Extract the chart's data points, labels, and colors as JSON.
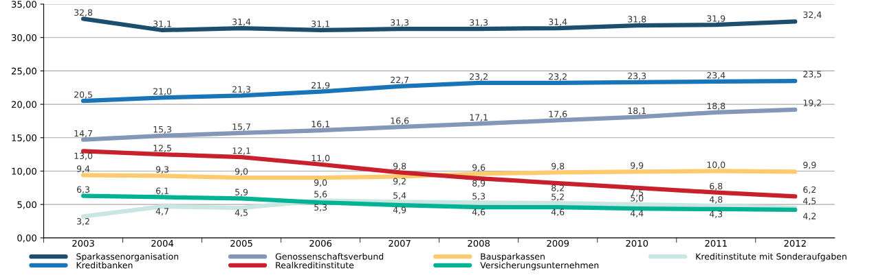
{
  "chart_data": {
    "type": "line",
    "categories": [
      "2003",
      "2004",
      "2005",
      "2006",
      "2007",
      "2008",
      "2009",
      "2010",
      "2011",
      "2012"
    ],
    "series": [
      {
        "name": "Sparkassenorganisation",
        "color": "#1d4e6e",
        "values": [
          32.8,
          31.1,
          31.4,
          31.1,
          31.3,
          31.3,
          31.4,
          31.8,
          31.9,
          32.4
        ],
        "value_labels": [
          "32,8",
          "31,1",
          "31,4",
          "31,1",
          "31,3",
          "31,3",
          "31,4",
          "31,8",
          "31,9",
          "32,4"
        ]
      },
      {
        "name": "Kreditbanken",
        "color": "#1a75b8",
        "values": [
          20.5,
          21.0,
          21.3,
          21.9,
          22.7,
          23.2,
          23.2,
          23.3,
          23.4,
          23.5
        ],
        "value_labels": [
          "20,5",
          "21,0",
          "21,3",
          "21,9",
          "22,7",
          "23,2",
          "23,2",
          "23,3",
          "23,4",
          "23,5"
        ]
      },
      {
        "name": "Genossenschaftsverbund",
        "color": "#8497b8",
        "values": [
          14.7,
          15.3,
          15.7,
          16.1,
          16.6,
          17.1,
          17.6,
          18.1,
          18.8,
          19.2
        ],
        "value_labels": [
          "14,7",
          "15,3",
          "15,7",
          "16,1",
          "16,6",
          "17,1",
          "17,6",
          "18,1",
          "18,8",
          "19,2"
        ]
      },
      {
        "name": "Realkreditinstitute",
        "color": "#c8202c",
        "values": [
          13.0,
          12.5,
          12.1,
          11.0,
          9.8,
          8.9,
          8.2,
          7.5,
          6.8,
          6.2
        ],
        "value_labels": [
          "13,0",
          "12,5",
          "12,1",
          "11,0",
          "9,8",
          "8,9",
          "8,2",
          "7,5",
          "6,8",
          "6,2"
        ]
      },
      {
        "name": "Bausparkassen",
        "color": "#fdcb6e",
        "values": [
          9.4,
          9.3,
          9.0,
          9.0,
          9.2,
          9.6,
          9.8,
          9.9,
          10.0,
          9.9
        ],
        "value_labels": [
          "9,4",
          "9,3",
          "9,0",
          "9,0",
          "9,2",
          "9,6",
          "9,8",
          "9,9",
          "10,0",
          "9,9"
        ]
      },
      {
        "name": "Versicherungsunternehmen",
        "color": "#00b394",
        "values": [
          6.3,
          6.1,
          5.9,
          5.3,
          4.9,
          4.6,
          4.6,
          4.4,
          4.3,
          4.2
        ],
        "value_labels": [
          "6,3",
          "6,1",
          "5,9",
          "5,3",
          "4,9",
          "4,6",
          "4,6",
          "4,4",
          "4,3",
          "4,2"
        ]
      },
      {
        "name": "Kreditinstitute mit Sonderaufgaben",
        "color": "#c9e6e2",
        "values": [
          3.2,
          4.7,
          4.5,
          5.6,
          5.4,
          5.3,
          5.2,
          5.0,
          4.8,
          4.5
        ],
        "value_labels": [
          "3,2",
          "4,7",
          "4,5",
          "5,6",
          "5,4",
          "5,3",
          "5,2",
          "5,0",
          "4,8",
          "4,5"
        ]
      }
    ],
    "ylim": [
      0,
      35
    ],
    "yticks": [
      {
        "value": 0,
        "label": "0,00"
      },
      {
        "value": 5,
        "label": "5,00"
      },
      {
        "value": 10,
        "label": "10,00"
      },
      {
        "value": 15,
        "label": "15,00"
      },
      {
        "value": 20,
        "label": "20,00"
      },
      {
        "value": 25,
        "label": "25,00"
      },
      {
        "value": 30,
        "label": "30,00"
      },
      {
        "value": 35,
        "label": "35,00"
      }
    ],
    "grid": "y",
    "legend": "bottom",
    "marker": "none",
    "line_style": "solid"
  }
}
